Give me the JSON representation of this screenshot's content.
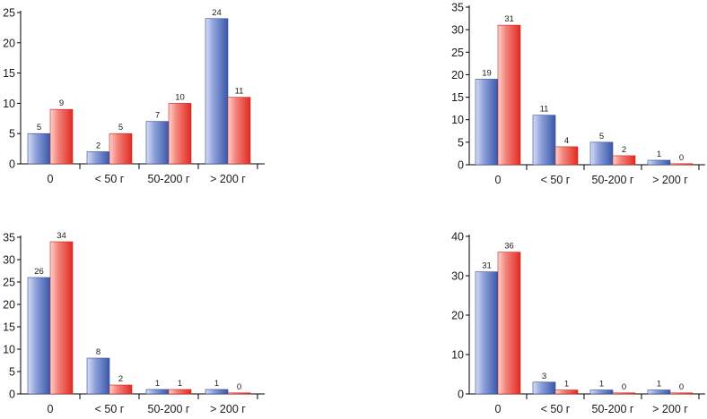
{
  "colors": {
    "series_blue": "#4a68b8",
    "series_red": "#e8322a",
    "axis": "#000000"
  },
  "chart_data": [
    {
      "type": "bar",
      "categories": [
        "0",
        "< 50 г",
        "50-200 г",
        "> 200 г"
      ],
      "series": [
        {
          "name": "blue",
          "values": [
            5,
            2,
            7,
            24
          ]
        },
        {
          "name": "red",
          "values": [
            9,
            5,
            10,
            11
          ]
        }
      ],
      "ylim": [
        0,
        25
      ],
      "yticks": [
        0,
        5,
        10,
        15,
        20,
        25
      ],
      "title": "",
      "xlabel": "",
      "ylabel": "",
      "grid": false,
      "legend": "none"
    },
    {
      "type": "bar",
      "categories": [
        "0",
        "< 50 г",
        "50-200 г",
        "> 200 г"
      ],
      "series": [
        {
          "name": "blue",
          "values": [
            19,
            11,
            5,
            1
          ]
        },
        {
          "name": "red",
          "values": [
            31,
            4,
            2,
            0
          ]
        }
      ],
      "ylim": [
        0,
        35
      ],
      "yticks": [
        0,
        5,
        10,
        15,
        20,
        25,
        30,
        35
      ],
      "title": "",
      "xlabel": "",
      "ylabel": "",
      "grid": false,
      "legend": "none"
    },
    {
      "type": "bar",
      "categories": [
        "0",
        "< 50 г",
        "50-200 г",
        "> 200 г"
      ],
      "series": [
        {
          "name": "blue",
          "values": [
            26,
            8,
            1,
            1
          ]
        },
        {
          "name": "red",
          "values": [
            34,
            2,
            1,
            0
          ]
        }
      ],
      "ylim": [
        0,
        35
      ],
      "yticks": [
        0,
        5,
        10,
        15,
        20,
        25,
        30,
        35
      ],
      "title": "",
      "xlabel": "",
      "ylabel": "",
      "grid": false,
      "legend": "none"
    },
    {
      "type": "bar",
      "categories": [
        "0",
        "< 50 г",
        "50-200 г",
        "> 200 г"
      ],
      "series": [
        {
          "name": "blue",
          "values": [
            31,
            3,
            1,
            1
          ]
        },
        {
          "name": "red",
          "values": [
            36,
            1,
            0,
            0
          ]
        }
      ],
      "ylim": [
        0,
        40
      ],
      "yticks": [
        0,
        10,
        20,
        30,
        40
      ],
      "title": "",
      "xlabel": "",
      "ylabel": "",
      "grid": false,
      "legend": "none"
    }
  ]
}
